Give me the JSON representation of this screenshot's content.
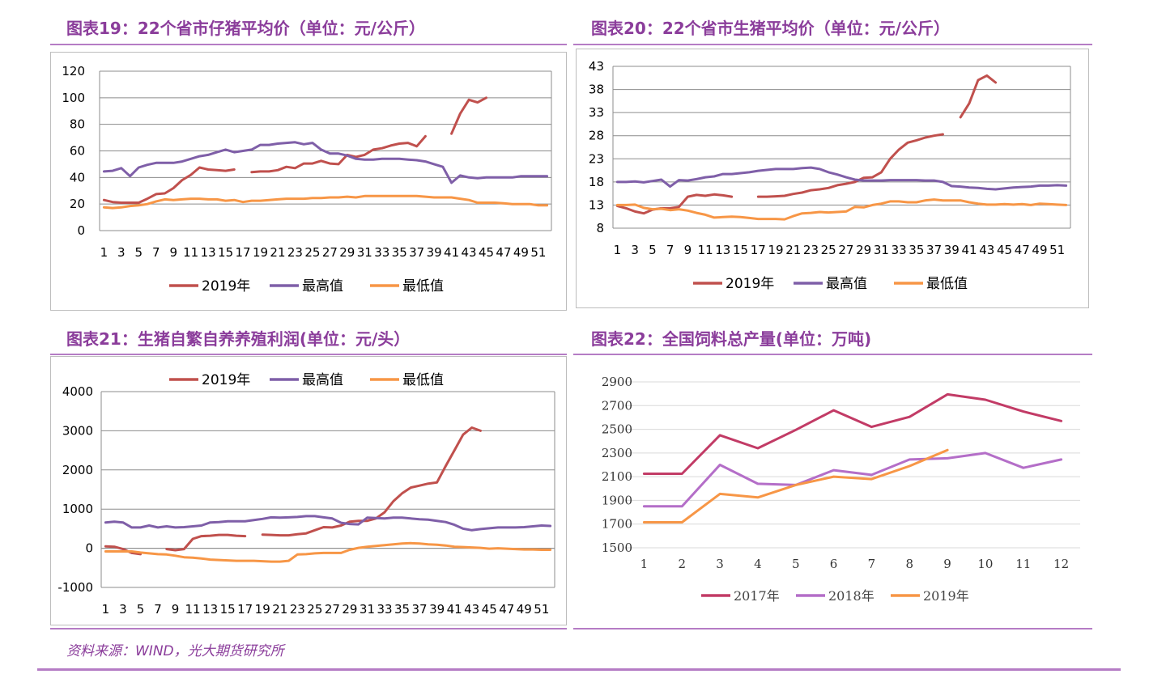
{
  "source": "资料来源：WIND，光大期货研究所",
  "colors": {
    "accent": "#8b3d9b",
    "s2019": "#c0504d",
    "max": "#7f5fa8",
    "min": "#f79646",
    "s2017": "#c23b66",
    "s2018": "#b46ec8"
  },
  "chart_data": [
    {
      "type": "line",
      "title": "图表19：22个省市仔猪平均价（单位：元/公斤）",
      "x": [
        1,
        2,
        3,
        4,
        5,
        6,
        7,
        8,
        9,
        10,
        11,
        12,
        13,
        14,
        15,
        16,
        17,
        18,
        19,
        20,
        21,
        22,
        23,
        24,
        25,
        26,
        27,
        28,
        29,
        30,
        31,
        32,
        33,
        34,
        35,
        36,
        37,
        38,
        39,
        40,
        41,
        42,
        43,
        44,
        45,
        46,
        47,
        48,
        49,
        50,
        51,
        52
      ],
      "x_tick_labels": [
        "1",
        "3",
        "5",
        "7",
        "9",
        "11",
        "13",
        "15",
        "17",
        "19",
        "21",
        "23",
        "25",
        "27",
        "29",
        "31",
        "33",
        "35",
        "37",
        "39",
        "41",
        "43",
        "45",
        "47",
        "49",
        "51"
      ],
      "ylim": [
        0,
        120
      ],
      "y_ticks": [
        0,
        20,
        40,
        60,
        80,
        100,
        120
      ],
      "legend": "bottom",
      "series": [
        {
          "name": "2019年",
          "values": [
            23,
            21.5,
            21,
            21,
            21,
            24,
            27.5,
            28,
            32,
            38,
            42,
            47.5,
            46,
            45.5,
            45,
            46,
            null,
            44,
            44.5,
            44.5,
            45.5,
            48,
            47,
            50.5,
            50.5,
            52.5,
            50.5,
            50,
            57,
            55.5,
            57,
            61,
            62,
            64,
            65.5,
            66,
            63.5,
            71,
            null,
            null,
            73,
            88,
            98.5,
            96.5,
            100,
            null,
            null,
            null,
            null,
            null,
            null,
            null
          ]
        },
        {
          "name": "最高值",
          "values": [
            44.5,
            45,
            47,
            41,
            47.5,
            49.5,
            51,
            51,
            51,
            52,
            54,
            56,
            57,
            59,
            61,
            59,
            60,
            61,
            64.5,
            64.5,
            65.5,
            66,
            66.5,
            65,
            66,
            61,
            58,
            58,
            56.5,
            54,
            53.5,
            53.5,
            54,
            54,
            54,
            53.5,
            53,
            52,
            50,
            48,
            36,
            41.5,
            40,
            39.5,
            40,
            40,
            40,
            40,
            41,
            41,
            41,
            41
          ]
        },
        {
          "name": "最低值",
          "values": [
            17.5,
            17,
            17.5,
            18.5,
            19,
            20,
            22,
            23.5,
            23,
            23.5,
            24,
            24,
            23.5,
            23.5,
            22.5,
            23,
            21.5,
            22.5,
            22.5,
            23,
            23.5,
            24,
            24,
            24,
            24.5,
            24.5,
            25,
            25,
            25.5,
            25,
            26,
            26,
            26,
            26,
            26,
            26,
            26,
            25.5,
            25,
            25,
            25,
            24,
            23,
            21,
            21,
            21,
            20.5,
            20,
            20,
            20,
            19,
            19
          ]
        }
      ]
    },
    {
      "type": "line",
      "title": "图表20：22个省市生猪平均价（单位：元/公斤）",
      "x": [
        1,
        2,
        3,
        4,
        5,
        6,
        7,
        8,
        9,
        10,
        11,
        12,
        13,
        14,
        15,
        16,
        17,
        18,
        19,
        20,
        21,
        22,
        23,
        24,
        25,
        26,
        27,
        28,
        29,
        30,
        31,
        32,
        33,
        34,
        35,
        36,
        37,
        38,
        39,
        40,
        41,
        42,
        43,
        44,
        45,
        46,
        47,
        48,
        49,
        50,
        51,
        52
      ],
      "x_tick_labels": [
        "1",
        "3",
        "5",
        "7",
        "9",
        "11",
        "13",
        "15",
        "17",
        "19",
        "21",
        "23",
        "25",
        "27",
        "29",
        "31",
        "33",
        "35",
        "37",
        "39",
        "41",
        "43",
        "45",
        "47",
        "49",
        "51"
      ],
      "ylim": [
        8,
        43
      ],
      "y_ticks": [
        8,
        13,
        18,
        23,
        28,
        33,
        38,
        43
      ],
      "legend": "bottom",
      "series": [
        {
          "name": "2019年",
          "values": [
            12.8,
            12.3,
            11.6,
            11.2,
            12,
            12.3,
            12.3,
            12.6,
            14.8,
            15.2,
            15,
            15.3,
            15.1,
            14.8,
            null,
            null,
            14.8,
            14.8,
            14.9,
            15,
            15.4,
            15.7,
            16.2,
            16.4,
            16.7,
            17.3,
            17.6,
            18,
            18.9,
            19,
            20.1,
            23,
            25,
            26.5,
            27,
            27.6,
            28,
            28.3,
            null,
            32,
            35,
            40,
            41,
            39.5,
            null,
            null,
            null,
            null,
            null,
            null,
            null,
            null
          ]
        },
        {
          "name": "最高值",
          "values": [
            18,
            18,
            18.1,
            17.9,
            18.2,
            18.5,
            17,
            18.4,
            18.3,
            18.6,
            19,
            19.2,
            19.7,
            19.7,
            19.9,
            20.1,
            20.4,
            20.6,
            20.8,
            20.8,
            20.8,
            21,
            21.1,
            20.8,
            20.1,
            19.6,
            19,
            18.5,
            18.3,
            18.3,
            18.3,
            18.4,
            18.4,
            18.4,
            18.4,
            18.3,
            18.3,
            18,
            17.1,
            17,
            16.8,
            16.7,
            16.5,
            16.4,
            16.6,
            16.8,
            16.9,
            17,
            17.2,
            17.2,
            17.3,
            17.2
          ]
        },
        {
          "name": "最低值",
          "values": [
            13,
            13,
            13.1,
            12.4,
            12.1,
            12.2,
            11.9,
            12.1,
            11.8,
            11.3,
            10.9,
            10.3,
            10.4,
            10.5,
            10.4,
            10.2,
            10,
            10,
            10,
            9.9,
            10.6,
            11.2,
            11.3,
            11.5,
            11.4,
            11.5,
            11.6,
            12.6,
            12.5,
            13,
            13.3,
            13.8,
            13.8,
            13.6,
            13.6,
            14,
            14.2,
            14,
            14,
            14,
            13.6,
            13.3,
            13.1,
            13.1,
            13.2,
            13.1,
            13.2,
            13,
            13.3,
            13.2,
            13.1,
            13
          ]
        }
      ]
    },
    {
      "type": "line",
      "title": "图表21：生猪自繁自养养殖利润(单位：元/头）",
      "x": [
        1,
        2,
        3,
        4,
        5,
        6,
        7,
        8,
        9,
        10,
        11,
        12,
        13,
        14,
        15,
        16,
        17,
        18,
        19,
        20,
        21,
        22,
        23,
        24,
        25,
        26,
        27,
        28,
        29,
        30,
        31,
        32,
        33,
        34,
        35,
        36,
        37,
        38,
        39,
        40,
        41,
        42,
        43,
        44,
        45,
        46,
        47,
        48,
        49,
        50,
        51,
        52
      ],
      "x_tick_labels": [
        "1",
        "3",
        "5",
        "7",
        "9",
        "11",
        "13",
        "15",
        "17",
        "19",
        "21",
        "23",
        "25",
        "27",
        "29",
        "31",
        "33",
        "35",
        "37",
        "39",
        "41",
        "43",
        "45",
        "47",
        "49",
        "51"
      ],
      "ylim": [
        -1000,
        4000
      ],
      "y_ticks": [
        -1000,
        0,
        1000,
        2000,
        3000,
        4000
      ],
      "legend": "top",
      "series": [
        {
          "name": "2019年",
          "values": [
            50,
            40,
            -20,
            -120,
            -150,
            null,
            null,
            -20,
            -50,
            -20,
            240,
            310,
            320,
            340,
            340,
            320,
            310,
            null,
            350,
            340,
            330,
            330,
            360,
            380,
            460,
            540,
            530,
            580,
            680,
            700,
            700,
            760,
            920,
            1200,
            1400,
            1550,
            1600,
            1650,
            1680,
            2100,
            2500,
            2900,
            3080,
            3000,
            null,
            null,
            null,
            null,
            null,
            null,
            null,
            null
          ]
        },
        {
          "name": "最高值",
          "values": [
            660,
            680,
            660,
            530,
            530,
            580,
            530,
            560,
            530,
            540,
            560,
            580,
            660,
            670,
            690,
            690,
            690,
            720,
            750,
            790,
            780,
            790,
            800,
            820,
            820,
            790,
            760,
            650,
            620,
            610,
            780,
            770,
            760,
            780,
            780,
            760,
            740,
            730,
            700,
            670,
            600,
            500,
            460,
            490,
            510,
            530,
            530,
            530,
            540,
            560,
            580,
            570
          ]
        },
        {
          "name": "最低值",
          "values": [
            -80,
            -80,
            -80,
            -80,
            -110,
            -130,
            -150,
            -160,
            -190,
            -230,
            -240,
            -260,
            -290,
            -300,
            -310,
            -320,
            -320,
            -320,
            -330,
            -340,
            -340,
            -320,
            -160,
            -150,
            -130,
            -120,
            -120,
            -120,
            -40,
            10,
            40,
            60,
            80,
            100,
            120,
            130,
            120,
            100,
            90,
            70,
            40,
            30,
            20,
            10,
            -10,
            0,
            -10,
            -20,
            -30,
            -30,
            -40,
            -40
          ]
        }
      ]
    },
    {
      "type": "line",
      "title": "图表22：全国饲料总产量(单位：万吨)",
      "x": [
        1,
        2,
        3,
        4,
        5,
        6,
        7,
        8,
        9,
        10,
        11,
        12
      ],
      "x_tick_labels": [
        "1",
        "2",
        "3",
        "4",
        "5",
        "6",
        "7",
        "8",
        "9",
        "10",
        "11",
        "12"
      ],
      "ylim": [
        1500,
        2900
      ],
      "y_ticks": [
        1500,
        1700,
        1900,
        2100,
        2300,
        2500,
        2700,
        2900
      ],
      "legend": "bottom",
      "series": [
        {
          "name": "2017年",
          "values": [
            2125,
            2125,
            2450,
            2340,
            2495,
            2660,
            2520,
            2605,
            2795,
            2750,
            2650,
            2570
          ]
        },
        {
          "name": "2018年",
          "values": [
            1850,
            1850,
            2200,
            2040,
            2030,
            2155,
            2115,
            2245,
            2255,
            2300,
            2175,
            2245
          ]
        },
        {
          "name": "2019年",
          "values": [
            1715,
            1715,
            1955,
            1925,
            2030,
            2100,
            2080,
            2190,
            2325,
            null,
            null,
            null
          ]
        }
      ]
    }
  ]
}
